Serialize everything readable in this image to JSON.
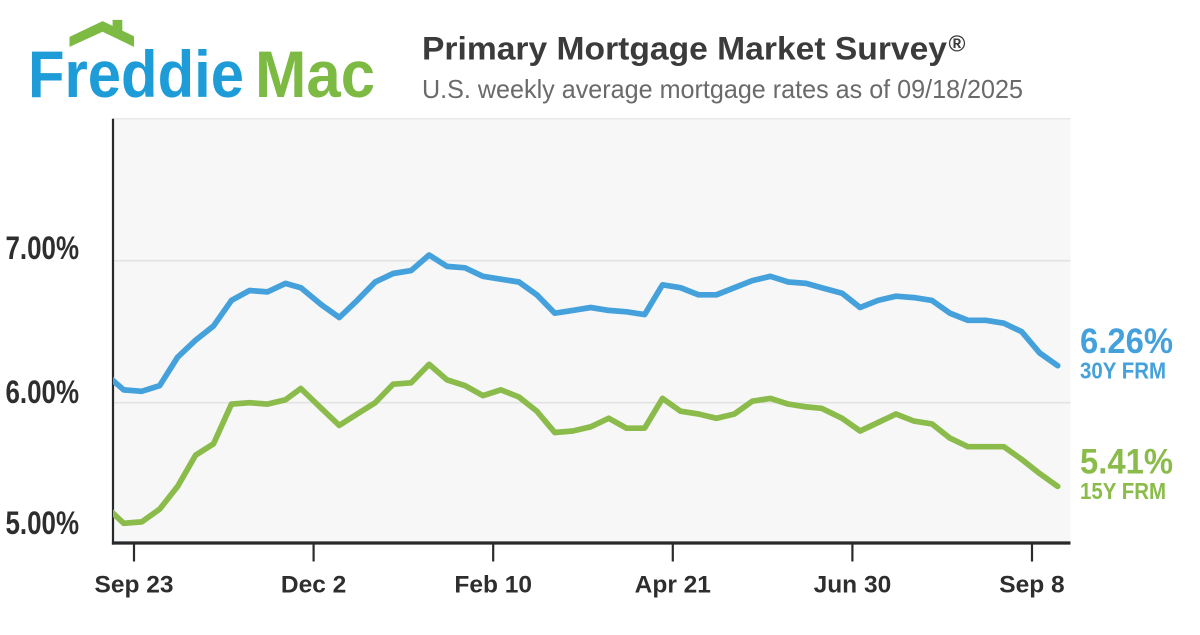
{
  "logo": {
    "freddie": "Freddie",
    "mac": "Mac",
    "freddie_color": "#1d9cd8",
    "mac_color": "#7cba44",
    "roof_icon_color": "#7cba44"
  },
  "header": {
    "title": "Primary Mortgage Market Survey",
    "registered_mark": "®",
    "subtitle": "U.S. weekly average mortgage rates as of 09/18/2025"
  },
  "chart_data": {
    "type": "line",
    "x_dates": [
      "2024-09-12",
      "2024-09-19",
      "2024-09-26",
      "2024-10-03",
      "2024-10-10",
      "2024-10-17",
      "2024-10-24",
      "2024-10-31",
      "2024-11-07",
      "2024-11-14",
      "2024-11-21",
      "2024-11-27",
      "2024-12-05",
      "2024-12-12",
      "2024-12-19",
      "2024-12-26",
      "2025-01-02",
      "2025-01-09",
      "2025-01-16",
      "2025-01-23",
      "2025-01-30",
      "2025-02-06",
      "2025-02-13",
      "2025-02-20",
      "2025-02-27",
      "2025-03-06",
      "2025-03-13",
      "2025-03-20",
      "2025-03-27",
      "2025-04-03",
      "2025-04-10",
      "2025-04-17",
      "2025-04-24",
      "2025-05-01",
      "2025-05-08",
      "2025-05-15",
      "2025-05-22",
      "2025-05-29",
      "2025-06-05",
      "2025-06-12",
      "2025-06-18",
      "2025-06-26",
      "2025-07-03",
      "2025-07-10",
      "2025-07-17",
      "2025-07-24",
      "2025-07-31",
      "2025-08-07",
      "2025-08-14",
      "2025-08-21",
      "2025-08-28",
      "2025-09-04",
      "2025-09-11",
      "2025-09-18"
    ],
    "series": [
      {
        "name": "30Y FRM",
        "color": "#45a1db",
        "values": [
          6.2,
          6.09,
          6.08,
          6.12,
          6.32,
          6.44,
          6.54,
          6.72,
          6.79,
          6.78,
          6.84,
          6.81,
          6.69,
          6.6,
          6.72,
          6.85,
          6.91,
          6.93,
          7.04,
          6.96,
          6.95,
          6.89,
          6.87,
          6.85,
          6.76,
          6.63,
          6.65,
          6.67,
          6.65,
          6.64,
          6.62,
          6.83,
          6.81,
          6.76,
          6.76,
          6.81,
          6.86,
          6.89,
          6.85,
          6.84,
          6.81,
          6.77,
          6.67,
          6.72,
          6.75,
          6.74,
          6.72,
          6.63,
          6.58,
          6.58,
          6.56,
          6.5,
          6.35,
          6.26
        ]
      },
      {
        "name": "15Y FRM",
        "color": "#8bbc4b",
        "values": [
          5.27,
          5.15,
          5.16,
          5.25,
          5.41,
          5.63,
          5.71,
          5.99,
          6.0,
          5.99,
          6.02,
          6.1,
          5.96,
          5.84,
          5.92,
          6.0,
          6.13,
          6.14,
          6.27,
          6.16,
          6.12,
          6.05,
          6.09,
          6.04,
          5.94,
          5.79,
          5.8,
          5.83,
          5.89,
          5.82,
          5.82,
          6.03,
          5.94,
          5.92,
          5.89,
          5.92,
          6.01,
          6.03,
          5.99,
          5.97,
          5.96,
          5.89,
          5.8,
          5.86,
          5.92,
          5.87,
          5.85,
          5.75,
          5.69,
          5.69,
          5.69,
          5.6,
          5.5,
          5.41
        ]
      }
    ],
    "ylim": [
      5.0,
      8.0
    ],
    "yticks": [
      {
        "label": "7.00%",
        "value": 7.0
      },
      {
        "label": "6.00%",
        "value": 6.0
      },
      {
        "label": "5.00%",
        "value": 5.0
      }
    ],
    "xticks": [
      {
        "label": "Sep 23",
        "date": "2024-09-23"
      },
      {
        "label": "Dec 2",
        "date": "2024-12-02"
      },
      {
        "label": "Feb 10",
        "date": "2025-02-10"
      },
      {
        "label": "Apr 21",
        "date": "2025-04-21"
      },
      {
        "label": "Jun 30",
        "date": "2025-06-30"
      },
      {
        "label": "Sep 8",
        "date": "2025-09-08"
      }
    ],
    "grid": "horizontal",
    "legend_position": "right",
    "annotations": [
      {
        "rate": "6.26%",
        "label": "30Y FRM"
      },
      {
        "rate": "5.41%",
        "label": "15Y FRM"
      }
    ]
  }
}
